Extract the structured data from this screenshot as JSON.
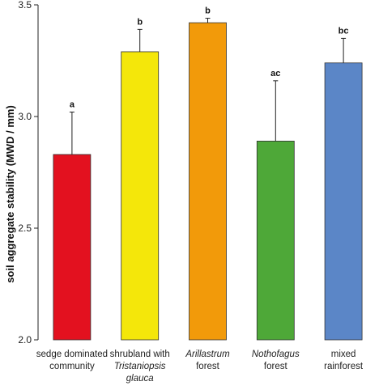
{
  "chart_data": {
    "type": "bar",
    "ylabel": "soil aggregate stability (MWD / mm)",
    "ylim": [
      2.0,
      3.5
    ],
    "yticks": [
      "2.0",
      "2.5",
      "3.0",
      "3.5"
    ],
    "ytick_values": [
      2.0,
      2.5,
      3.0,
      3.5
    ],
    "grid": false,
    "categories": [
      {
        "line1": "sedge dominated",
        "line1_italic": false,
        "line1_suffix": "",
        "line2": "community",
        "line2_italic": false,
        "line3": "",
        "line3_italic": false
      },
      {
        "line1": "shrubland with",
        "line1_italic": false,
        "line1_suffix": "",
        "line2": "Tristaniopsis",
        "line2_italic": true,
        "line3": "glauca",
        "line3_italic": true
      },
      {
        "line1": "Arillastrum",
        "line1_italic": true,
        "line1_suffix": "",
        "line2": "forest",
        "line2_italic": false,
        "line3": "",
        "line3_italic": false
      },
      {
        "line1": "Nothofagus",
        "line1_italic": true,
        "line1_suffix": "",
        "line2": "forest",
        "line2_italic": false,
        "line3": "",
        "line3_italic": false
      },
      {
        "line1": "mixed",
        "line1_italic": false,
        "line1_suffix": "",
        "line2": "rainforest",
        "line2_italic": false,
        "line3": "",
        "line3_italic": false
      }
    ],
    "values": [
      2.83,
      3.29,
      3.42,
      2.89,
      3.24
    ],
    "error_upper": [
      3.02,
      3.39,
      3.44,
      3.16,
      3.35
    ],
    "significance": [
      "a",
      "b",
      "b",
      "ac",
      "bc"
    ],
    "colors": [
      "#e3111f",
      "#f4e70a",
      "#f29a0a",
      "#4ea838",
      "#5b86c7"
    ]
  }
}
